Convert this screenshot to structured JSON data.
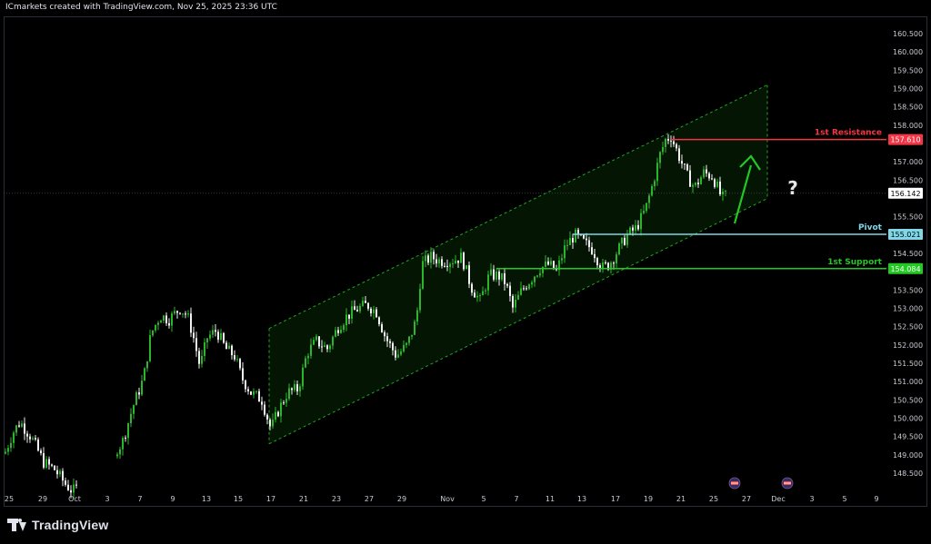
{
  "header": {
    "text": "ICmarkets created with TradingView.com, Nov 25, 2025 23:36 UTC"
  },
  "footer": {
    "brand": "TradingView"
  },
  "colors": {
    "background": "#000000",
    "channel": "#1fa51f",
    "resistance": "#f23645",
    "pivot": "#7fd7e8",
    "support": "#22c922",
    "arrow": "#22c922",
    "candle": "#22ab22"
  },
  "chart_data": {
    "type": "candlestick",
    "ylim": [
      148.25,
      160.75
    ],
    "y_ticks": [
      "148.500",
      "149.000",
      "149.500",
      "150.000",
      "150.500",
      "151.000",
      "151.500",
      "152.000",
      "152.500",
      "153.000",
      "153.500",
      "154.000",
      "154.500",
      "155.000",
      "155.500",
      "156.000",
      "156.500",
      "157.000",
      "157.500",
      "158.000",
      "158.500",
      "159.000",
      "159.500",
      "160.000",
      "160.500"
    ],
    "x_ticks": [
      "25",
      "29",
      "Oct",
      "3",
      "7",
      "9",
      "13",
      "15",
      "17",
      "21",
      "23",
      "27",
      "29",
      "Nov",
      "5",
      "7",
      "11",
      "13",
      "17",
      "19",
      "21",
      "25",
      "27",
      "Dec",
      "3",
      "5",
      "9"
    ],
    "current_price": {
      "value": 156.142,
      "label": "156.142"
    },
    "levels": [
      {
        "name": "1st Resistance",
        "value": 157.61,
        "label": "157.610",
        "color": "#f23645"
      },
      {
        "name": "Pivot",
        "value": 155.021,
        "label": "155.021",
        "color": "#7fd7e8"
      },
      {
        "name": "1st Support",
        "value": 154.084,
        "label": "154.084",
        "color": "#22c922"
      }
    ],
    "annotation": "?",
    "price_path": [
      [
        0,
        148.7
      ],
      [
        14,
        149.6
      ],
      [
        22,
        149.9
      ],
      [
        34,
        149.5
      ],
      [
        48,
        148.8
      ],
      [
        60,
        148.6
      ],
      [
        72,
        148.2
      ],
      [
        80,
        148.0
      ],
      [
        134,
        149.3
      ],
      [
        146,
        150.3
      ],
      [
        158,
        151.1
      ],
      [
        166,
        152.3
      ],
      [
        176,
        152.8
      ],
      [
        186,
        152.7
      ],
      [
        198,
        153.0
      ],
      [
        206,
        152.8
      ],
      [
        212,
        152.3
      ],
      [
        220,
        151.4
      ],
      [
        228,
        152.2
      ],
      [
        238,
        152.4
      ],
      [
        248,
        151.9
      ],
      [
        258,
        151.7
      ],
      [
        266,
        151.1
      ],
      [
        276,
        150.7
      ],
      [
        288,
        150.5
      ],
      [
        298,
        149.7
      ],
      [
        306,
        150.2
      ],
      [
        316,
        150.7
      ],
      [
        328,
        150.8
      ],
      [
        338,
        151.8
      ],
      [
        348,
        152.1
      ],
      [
        360,
        151.9
      ],
      [
        372,
        152.5
      ],
      [
        382,
        152.8
      ],
      [
        394,
        153.0
      ],
      [
        404,
        153.1
      ],
      [
        414,
        152.9
      ],
      [
        424,
        152.2
      ],
      [
        436,
        151.7
      ],
      [
        448,
        152.0
      ],
      [
        458,
        152.7
      ],
      [
        464,
        154.2
      ],
      [
        474,
        154.4
      ],
      [
        484,
        154.3
      ],
      [
        496,
        154.3
      ],
      [
        508,
        154.4
      ],
      [
        518,
        153.6
      ],
      [
        528,
        153.2
      ],
      [
        538,
        153.9
      ],
      [
        548,
        153.9
      ],
      [
        556,
        153.7
      ],
      [
        564,
        153.0
      ],
      [
        574,
        153.5
      ],
      [
        584,
        153.8
      ],
      [
        594,
        154.1
      ],
      [
        604,
        154.2
      ],
      [
        612,
        154.0
      ],
      [
        622,
        154.7
      ],
      [
        632,
        155.0
      ],
      [
        642,
        154.8
      ],
      [
        652,
        154.6
      ],
      [
        662,
        154.1
      ],
      [
        670,
        154.2
      ],
      [
        680,
        154.6
      ],
      [
        690,
        155.0
      ],
      [
        700,
        155.2
      ],
      [
        710,
        155.7
      ],
      [
        718,
        156.4
      ],
      [
        726,
        157.2
      ],
      [
        732,
        157.6
      ],
      [
        738,
        157.7
      ],
      [
        746,
        157.2
      ],
      [
        756,
        156.6
      ],
      [
        764,
        156.3
      ],
      [
        774,
        156.7
      ],
      [
        784,
        156.6
      ],
      [
        794,
        156.0
      ],
      [
        800,
        156.1
      ]
    ]
  }
}
